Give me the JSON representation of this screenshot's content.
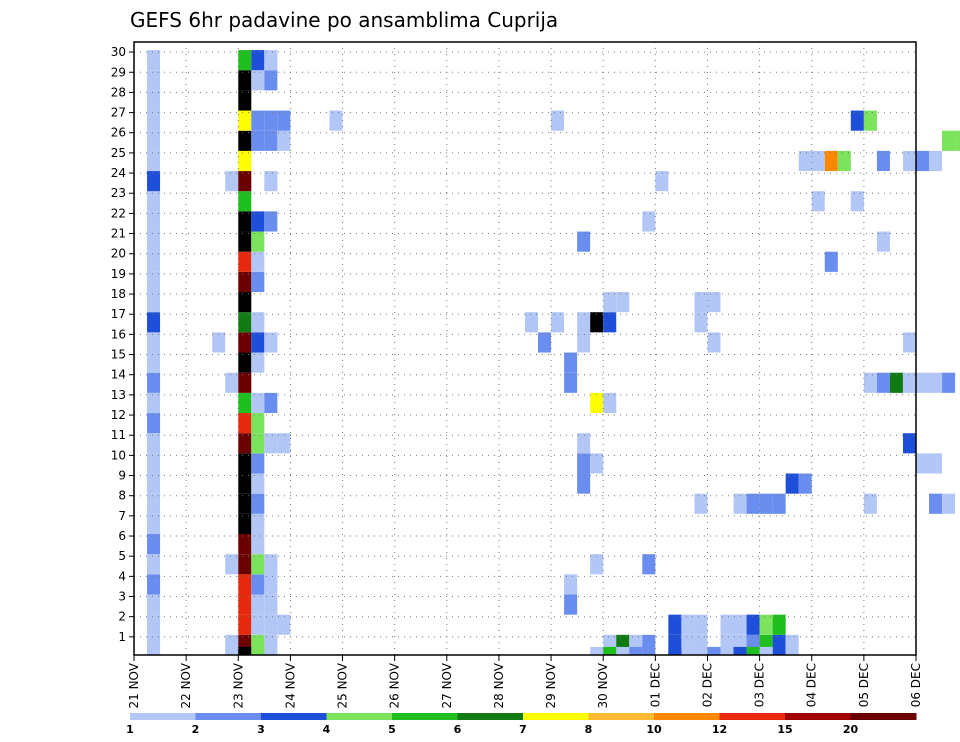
{
  "chart_data": {
    "type": "heatmap",
    "title": "GEFS 6hr padavine po ansamblima Cuprija",
    "xlabel": "",
    "ylabel": "",
    "x_ticks": [
      "21 NOV",
      "22 NOV",
      "23 NOV",
      "24 NOV",
      "25 NOV",
      "26 NOV",
      "27 NOV",
      "28 NOV",
      "29 NOV",
      "30 NOV",
      "01 DEC",
      "02 DEC",
      "03 DEC",
      "04 DEC",
      "05 DEC",
      "06 DEC"
    ],
    "y_ticks": [
      "1",
      "2",
      "3",
      "4",
      "5",
      "6",
      "7",
      "8",
      "9",
      "10",
      "11",
      "12",
      "13",
      "14",
      "15",
      "16",
      "17",
      "18",
      "19",
      "20",
      "21",
      "22",
      "23",
      "24",
      "25",
      "26",
      "27",
      "28",
      "29",
      "30"
    ],
    "y_range": [
      0,
      30
    ],
    "time_steps_per_day": 4,
    "grid": true,
    "legend_placement": "bottom",
    "legend": {
      "labels": [
        "1",
        "2",
        "3",
        "4",
        "5",
        "6",
        "7",
        "8",
        "10",
        "12",
        "15",
        "20"
      ],
      "colors": [
        "#b3c7f7",
        "#6a8ef0",
        "#1e4fd8",
        "#7be35c",
        "#1fbf1f",
        "#127a12",
        "#ffff00",
        "#ffbb33",
        "#ff8800",
        "#e8280c",
        "#a10000",
        "#6b0000"
      ]
    },
    "columns": [
      {
        "t": 1,
        "cells": [
          [
            0,
            1
          ],
          [
            1,
            1
          ],
          [
            2,
            1
          ],
          [
            3,
            2
          ],
          [
            4,
            1
          ],
          [
            5,
            2
          ],
          [
            6,
            1
          ],
          [
            7,
            1
          ],
          [
            8,
            1
          ],
          [
            9,
            1
          ],
          [
            10,
            1
          ],
          [
            11,
            2
          ],
          [
            12,
            1
          ],
          [
            13,
            2
          ],
          [
            14,
            1
          ],
          [
            15,
            1
          ],
          [
            16,
            3
          ],
          [
            17,
            1
          ],
          [
            18,
            1
          ],
          [
            19,
            1
          ],
          [
            20,
            1
          ],
          [
            21,
            1
          ],
          [
            22,
            1
          ],
          [
            23,
            3
          ],
          [
            24,
            1
          ],
          [
            25,
            1
          ],
          [
            26,
            1
          ],
          [
            27,
            1
          ],
          [
            28,
            1
          ],
          [
            29,
            1
          ]
        ]
      },
      {
        "t": 6,
        "cells": [
          [
            15,
            1
          ]
        ]
      },
      {
        "t": 7,
        "cells": [
          [
            0,
            1
          ],
          [
            4,
            1
          ],
          [
            13,
            1
          ],
          [
            23,
            1
          ]
        ]
      },
      {
        "t": 8,
        "cells": [
          [
            0,
            12
          ],
          [
            1,
            10
          ],
          [
            2,
            10
          ],
          [
            3,
            10
          ],
          [
            4,
            12
          ],
          [
            5,
            12
          ],
          [
            6,
            13
          ],
          [
            7,
            14
          ],
          [
            8,
            13
          ],
          [
            9,
            13
          ],
          [
            10,
            12
          ],
          [
            11,
            10
          ],
          [
            12,
            5
          ],
          [
            13,
            12
          ],
          [
            14,
            13
          ],
          [
            15,
            12
          ],
          [
            16,
            6
          ],
          [
            17,
            14
          ],
          [
            18,
            12
          ],
          [
            19,
            10
          ],
          [
            20,
            13
          ],
          [
            21,
            13
          ],
          [
            22,
            5
          ],
          [
            23,
            12
          ],
          [
            24,
            7
          ],
          [
            25,
            14
          ],
          [
            26,
            7
          ],
          [
            27,
            14
          ],
          [
            28,
            13
          ],
          [
            29,
            5
          ]
        ]
      },
      {
        "t": 9,
        "cells": [
          [
            0,
            4
          ],
          [
            1,
            1
          ],
          [
            2,
            1
          ],
          [
            3,
            2
          ],
          [
            4,
            4
          ],
          [
            5,
            1
          ],
          [
            6,
            1
          ],
          [
            7,
            2
          ],
          [
            8,
            1
          ],
          [
            9,
            2
          ],
          [
            10,
            4
          ],
          [
            11,
            4
          ],
          [
            12,
            1
          ],
          [
            14,
            1
          ],
          [
            15,
            3
          ],
          [
            16,
            1
          ],
          [
            18,
            2
          ],
          [
            19,
            1
          ],
          [
            20,
            4
          ],
          [
            21,
            3
          ],
          [
            25,
            2
          ],
          [
            26,
            2
          ],
          [
            28,
            1
          ],
          [
            29,
            3
          ]
        ]
      },
      {
        "t": 10,
        "cells": [
          [
            0,
            1
          ],
          [
            1,
            1
          ],
          [
            2,
            1
          ],
          [
            3,
            1
          ],
          [
            4,
            1
          ],
          [
            10,
            1
          ],
          [
            12,
            2
          ],
          [
            15,
            1
          ],
          [
            21,
            2
          ],
          [
            23,
            1
          ],
          [
            25,
            2
          ],
          [
            26,
            2
          ],
          [
            28,
            2
          ],
          [
            29,
            1
          ]
        ]
      },
      {
        "t": 11,
        "cells": [
          [
            1,
            1
          ],
          [
            10,
            1
          ],
          [
            25,
            1
          ],
          [
            26,
            2
          ]
        ]
      },
      {
        "t": 15,
        "cells": [
          [
            26,
            1
          ]
        ]
      },
      {
        "t": 30,
        "cells": [
          [
            16,
            1
          ]
        ]
      },
      {
        "t": 31,
        "cells": [
          [
            15,
            2
          ]
        ]
      },
      {
        "t": 32,
        "cells": [
          [
            16,
            1
          ],
          [
            26,
            1
          ]
        ]
      },
      {
        "t": 33,
        "cells": [
          [
            2,
            2
          ],
          [
            3,
            1
          ],
          [
            13,
            2
          ],
          [
            14,
            2
          ]
        ]
      },
      {
        "t": 34,
        "cells": [
          [
            8,
            2
          ],
          [
            9,
            2
          ],
          [
            10,
            1
          ],
          [
            15,
            1
          ],
          [
            16,
            1
          ],
          [
            20,
            2
          ]
        ]
      },
      {
        "t": 35,
        "cells": [
          [
            4,
            1
          ],
          [
            9,
            1
          ],
          [
            12,
            7
          ],
          [
            16,
            13
          ]
        ]
      },
      {
        "t": 36,
        "cells": [
          [
            0,
            1
          ],
          [
            12,
            1
          ],
          [
            16,
            3
          ],
          [
            17,
            1
          ]
        ]
      },
      {
        "t": 37,
        "cells": [
          [
            0,
            6
          ],
          [
            17,
            1
          ]
        ]
      },
      {
        "t": 38,
        "cells": [
          [
            0,
            1
          ]
        ]
      },
      {
        "t": 39,
        "cells": [
          [
            0,
            2
          ],
          [
            4,
            2
          ],
          [
            21,
            1
          ]
        ]
      },
      {
        "t": 40,
        "cells": [
          [
            23,
            1
          ]
        ]
      },
      {
        "t": 41,
        "cells": [
          [
            0,
            3
          ],
          [
            1,
            3
          ]
        ]
      },
      {
        "t": 42,
        "cells": [
          [
            0,
            1
          ],
          [
            1,
            1
          ]
        ]
      },
      {
        "t": 43,
        "cells": [
          [
            0,
            1
          ],
          [
            1,
            1
          ],
          [
            7,
            1
          ],
          [
            16,
            1
          ],
          [
            17,
            1
          ]
        ]
      },
      {
        "t": 44,
        "cells": [
          [
            15,
            1
          ],
          [
            17,
            1
          ]
        ]
      },
      {
        "t": 45,
        "cells": [
          [
            0,
            1
          ],
          [
            1,
            1
          ]
        ]
      },
      {
        "t": 46,
        "cells": [
          [
            0,
            1
          ],
          [
            1,
            1
          ],
          [
            7,
            1
          ]
        ]
      },
      {
        "t": 47,
        "cells": [
          [
            0,
            2
          ],
          [
            1,
            3
          ],
          [
            7,
            2
          ]
        ]
      },
      {
        "t": 48,
        "cells": [
          [
            0,
            5
          ],
          [
            1,
            4
          ],
          [
            7,
            2
          ]
        ]
      },
      {
        "t": 49,
        "cells": [
          [
            0,
            3
          ],
          [
            1,
            5
          ],
          [
            7,
            2
          ]
        ]
      },
      {
        "t": 50,
        "cells": [
          [
            0,
            1
          ],
          [
            8,
            3
          ]
        ]
      },
      {
        "t": 51,
        "cells": [
          [
            8,
            2
          ],
          [
            24,
            1
          ]
        ]
      },
      {
        "t": 52,
        "cells": [
          [
            22,
            1
          ],
          [
            24,
            1
          ]
        ]
      },
      {
        "t": 53,
        "cells": [
          [
            19,
            2
          ],
          [
            24,
            9
          ]
        ]
      },
      {
        "t": 54,
        "cells": [
          [
            24,
            4
          ]
        ]
      },
      {
        "t": 55,
        "cells": [
          [
            22,
            1
          ],
          [
            26,
            3
          ]
        ]
      },
      {
        "t": 56,
        "cells": [
          [
            7,
            1
          ],
          [
            13,
            1
          ],
          [
            26,
            4
          ]
        ]
      },
      {
        "t": 57,
        "cells": [
          [
            13,
            2
          ],
          [
            20,
            1
          ],
          [
            24,
            2
          ]
        ]
      },
      {
        "t": 58,
        "cells": [
          [
            13,
            6
          ]
        ]
      },
      {
        "t": 59,
        "cells": [
          [
            10,
            3
          ],
          [
            13,
            1
          ],
          [
            15,
            1
          ],
          [
            24,
            1
          ]
        ]
      },
      {
        "t": 60,
        "cells": [
          [
            9,
            1
          ],
          [
            13,
            1
          ],
          [
            24,
            2
          ]
        ]
      },
      {
        "t": 61,
        "cells": [
          [
            7,
            2
          ],
          [
            9,
            1
          ],
          [
            13,
            1
          ],
          [
            24,
            1
          ]
        ]
      },
      {
        "t": 62,
        "cells": [
          [
            7,
            1
          ],
          [
            13,
            2
          ],
          [
            25,
            4
          ]
        ]
      },
      {
        "t": 63,
        "cells": [
          [
            25,
            4
          ]
        ]
      },
      {
        "t": 64,
        "cells": [
          [
            2,
            1
          ],
          [
            5,
            1
          ]
        ]
      },
      {
        "t": 65,
        "cells": [
          [
            25,
            1
          ]
        ]
      },
      {
        "t": 66,
        "cells": [
          [
            12,
            3
          ]
        ]
      }
    ],
    "bottom_strip": [
      [
        18,
        1
      ],
      [
        19,
        5
      ],
      [
        20,
        1
      ],
      [
        21,
        2
      ],
      [
        24,
        3
      ],
      [
        27,
        2
      ],
      [
        29,
        3
      ],
      [
        30,
        5
      ],
      [
        31,
        1
      ]
    ],
    "bottom_strip_extra": [
      [
        8,
        13
      ],
      [
        9,
        4
      ],
      [
        1,
        1
      ]
    ]
  }
}
